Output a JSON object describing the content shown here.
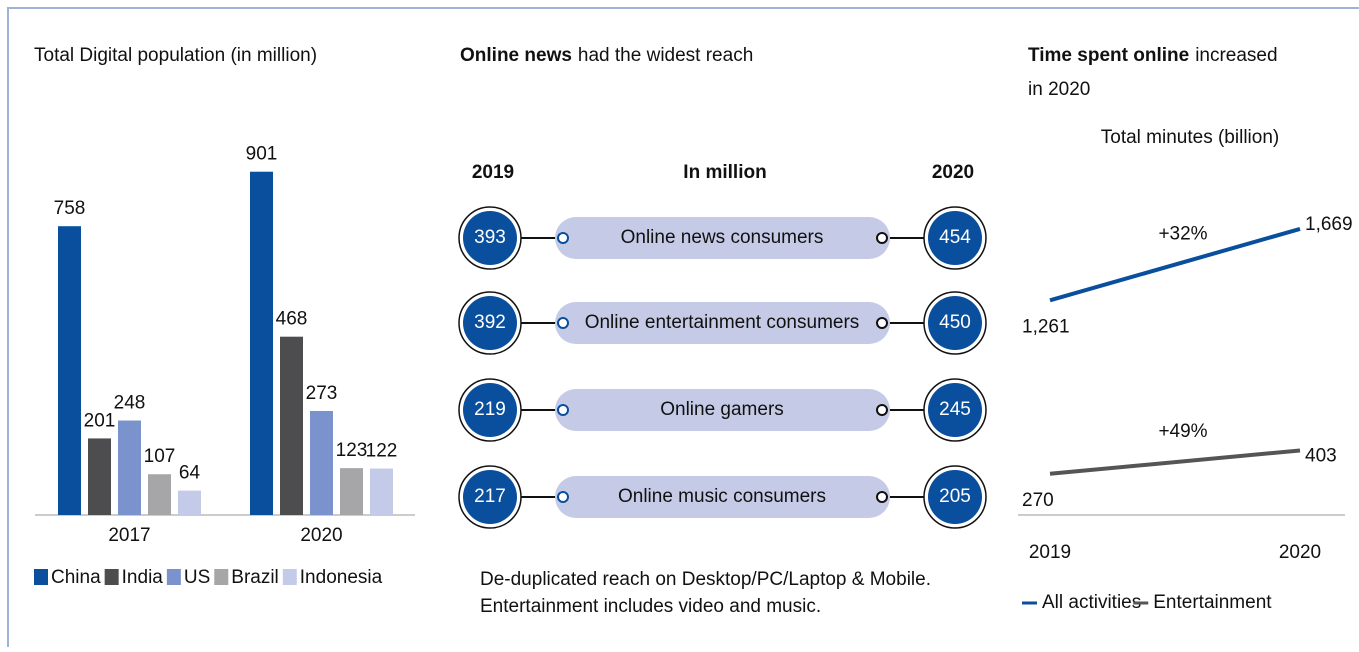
{
  "chart_data": [
    {
      "type": "bar",
      "title": "Total Digital population (in million)",
      "categories": [
        "2017",
        "2020"
      ],
      "series": [
        {
          "name": "China",
          "color": "#0a4f9e",
          "values": [
            758,
            901
          ]
        },
        {
          "name": "India",
          "color": "#4d4d4f",
          "values": [
            201,
            468
          ]
        },
        {
          "name": "US",
          "color": "#7b93cc",
          "values": [
            248,
            273
          ]
        },
        {
          "name": "Brazil",
          "color": "#a6a6a8",
          "values": [
            107,
            123
          ]
        },
        {
          "name": "Indonesia",
          "color": "#c3cbe8",
          "values": [
            64,
            122
          ]
        }
      ],
      "legend": "bottom"
    },
    {
      "type": "comparison",
      "title": {
        "bold": "Online news",
        "rest": "had the widest reach"
      },
      "headers": [
        "2019",
        "In million",
        "2020"
      ],
      "categories": [
        "Online news consumers",
        "Online entertainment consumers",
        "Online gamers",
        "Online music consumers"
      ],
      "series": [
        {
          "name": "2019",
          "color": "#0a4f9e",
          "values": [
            393,
            392,
            219,
            217
          ]
        },
        {
          "name": "2020",
          "color": "#0a4f9e",
          "values": [
            454,
            450,
            245,
            205
          ]
        }
      ],
      "note": [
        "De-duplicated reach on Desktop/PC/Laptop & Mobile.",
        "Entertainment includes video and music."
      ]
    },
    {
      "type": "line",
      "title": {
        "bold": "Time spent online",
        "rest": "increased",
        "line2": "in 2020"
      },
      "subtitle": "Total minutes (billion)",
      "categories": [
        "2019",
        "2020"
      ],
      "series": [
        {
          "name": "All activities",
          "color": "#0a4f9e",
          "values": [
            1261,
            1669
          ],
          "value_labels": [
            "1,261",
            "1,669"
          ],
          "annotation": "+32%"
        },
        {
          "name": "Entertainment",
          "color": "#555555",
          "values": [
            270,
            403
          ],
          "annotation": "+49%"
        }
      ],
      "legend": "bottom"
    }
  ]
}
